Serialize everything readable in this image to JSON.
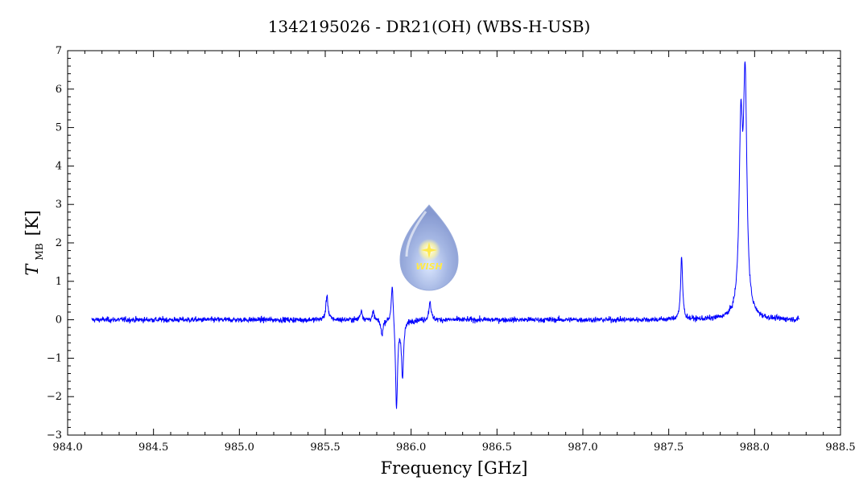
{
  "chart_data": {
    "type": "line",
    "title": "1342195026 - DR21(OH) (WBS-H-USB)",
    "xlabel": "Frequency [GHz]",
    "ylabel_symbol": "T",
    "ylabel_subscript": "MB",
    "ylabel_unit": "[K]",
    "xlim": [
      984.0,
      988.5
    ],
    "ylim": [
      -3,
      7
    ],
    "x_ticks": [
      "984.0",
      "984.5",
      "985.0",
      "985.5",
      "986.0",
      "986.5",
      "987.0",
      "987.5",
      "988.0",
      "988.5"
    ],
    "y_ticks": [
      "−3",
      "−2",
      "−1",
      "0",
      "1",
      "2",
      "3",
      "4",
      "5",
      "6",
      "7"
    ],
    "x_range": [
      984.14,
      988.26
    ],
    "baseline": 0.0,
    "noise_rms": 0.06,
    "features": [
      {
        "center": 985.51,
        "peak": 0.65
      },
      {
        "center": 985.71,
        "peak": 0.25
      },
      {
        "center": 985.78,
        "peak": 0.2
      },
      {
        "center": 985.83,
        "peak": -0.4
      },
      {
        "center": 985.89,
        "peak": 1.05
      },
      {
        "center": 985.915,
        "peak": -2.35
      },
      {
        "center": 985.95,
        "peak": -1.5
      },
      {
        "center": 986.11,
        "peak": 0.5
      },
      {
        "center": 987.575,
        "peak": 1.6
      },
      {
        "center": 987.92,
        "peak": 4.6
      },
      {
        "center": 987.945,
        "peak": 5.85
      }
    ],
    "series_color": "#0000ff",
    "grid": false,
    "logo": "WISH"
  }
}
